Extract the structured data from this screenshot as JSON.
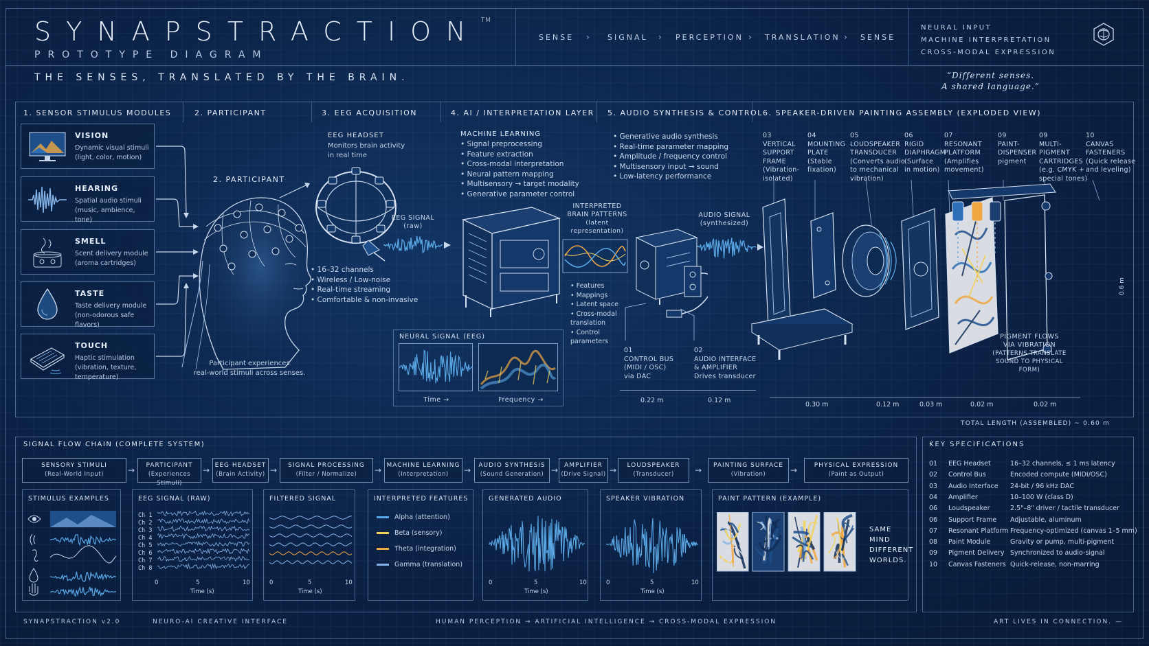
{
  "header": {
    "title": "SYNAPSTRACTION",
    "tm": "TM",
    "subtitle": "PROTOTYPE DIAGRAM",
    "tagline": "THE SENSES, TRANSLATED BY THE BRAIN.",
    "pipeline": [
      "SENSE",
      "SIGNAL",
      "PERCEPTION",
      "TRANSLATION",
      "SENSE"
    ],
    "pipeline_arrow": "›",
    "neural_lines": [
      "NEURAL INPUT",
      "MACHINE INTERPRETATION",
      "CROSS-MODAL EXPRESSION"
    ],
    "quote_line1": "“Different senses.",
    "quote_line2": "A shared language.”"
  },
  "sections": {
    "s1": "1. SENSOR STIMULUS MODULES",
    "s2": "2. PARTICIPANT",
    "s3": "3. EEG ACQUISITION",
    "s4": "4. AI / INTERPRETATION LAYER",
    "s5": "5. AUDIO SYNTHESIS & CONTROL",
    "s6": "6. SPEAKER-DRIVEN PAINTING ASSEMBLY (EXPLODED VIEW)"
  },
  "stimuli": [
    {
      "name": "VISION",
      "desc1": "Dynamic visual stimuli",
      "desc2": "(light, color, motion)"
    },
    {
      "name": "HEARING",
      "desc1": "Spatial audio stimuli",
      "desc2": "(music, ambience, tone)"
    },
    {
      "name": "SMELL",
      "desc1": "Scent delivery module",
      "desc2": "(aroma cartridges)"
    },
    {
      "name": "TASTE",
      "desc1": "Taste delivery module",
      "desc2": "(non-odorous safe flavors)"
    },
    {
      "name": "TOUCH",
      "desc1": "Haptic stimulation",
      "desc2": "(vibration, texture, temperature)"
    }
  ],
  "participant": {
    "label": "2. PARTICIPANT",
    "caption1": "Participant experiences",
    "caption2": "real-world stimuli across senses."
  },
  "eeg": {
    "headset_title": "EEG HEADSET",
    "headset_desc1": "Monitors brain activity",
    "headset_desc2": "in real time",
    "signal_label": "EEG SIGNAL",
    "signal_sub": "(raw)",
    "bullets": [
      "16–32 channels",
      "Wireless / Low-noise",
      "Real-time streaming",
      "Comfortable & non-invasive"
    ]
  },
  "ai": {
    "heading": "MACHINE LEARNING",
    "bullets": [
      "Signal preprocessing",
      "Feature extraction",
      "Cross-modal interpretation",
      "Neural pattern mapping",
      "Multisensory → target modality",
      "Generative parameter control"
    ],
    "patterns_title1": "INTERPRETED",
    "patterns_title2": "BRAIN PATTERNS",
    "patterns_sub": "(latent representation)",
    "pattern_bullets": [
      "Features",
      "Mappings",
      "Latent space",
      "Cross-modal translation",
      "Control parameters"
    ],
    "neural_box_title": "NEURAL SIGNAL (EEG)",
    "time_label": "Time →",
    "freq_label": "Frequency →"
  },
  "audio": {
    "bullets": [
      "Generative audio synthesis",
      "Real-time parameter mapping",
      "Amplitude / frequency control",
      "Multisensory input → sound",
      "Low-latency performance"
    ],
    "signal_label": "AUDIO SIGNAL",
    "signal_sub": "(synthesized)",
    "part01": [
      "01",
      "CONTROL BUS",
      "(MIDI / OSC)",
      "via DAC"
    ],
    "part02": [
      "02",
      "AUDIO INTERFACE",
      "& AMPLIFIER",
      "Drives transducer"
    ],
    "dim1": "0.22 m",
    "dim2": "0.12 m"
  },
  "assembly": {
    "parts": [
      {
        "num": "03",
        "l1": "VERTICAL",
        "l2": "SUPPORT",
        "l3": "FRAME",
        "l4": "(Vibration-",
        "l5": "isolated)"
      },
      {
        "num": "04",
        "l1": "MOUNTING",
        "l2": "PLATE",
        "l3": "(Stable",
        "l4": "fixation)",
        "l5": ""
      },
      {
        "num": "05",
        "l1": "LOUDSPEAKER",
        "l2": "TRANSDUCER",
        "l3": "(Converts audio",
        "l4": "to mechanical",
        "l5": "vibration)"
      },
      {
        "num": "06",
        "l1": "RIGID",
        "l2": "DIAPHRAGM",
        "l3": "(Surface",
        "l4": "in motion)",
        "l5": ""
      },
      {
        "num": "07",
        "l1": "RESONANT",
        "l2": "PLATFORM",
        "l3": "(Amplifies",
        "l4": "movement)",
        "l5": ""
      },
      {
        "num": "09",
        "l1": "PAINT-",
        "l2": "DISPENSER",
        "l3": "pigment",
        "l4": "",
        "l5": ""
      },
      {
        "num": "09",
        "l1": "MULTI-",
        "l2": "PIGMENT",
        "l3": "CARTRIDGES",
        "l4": "(e.g. CMYK +",
        "l5": "special tones)"
      },
      {
        "num": "10",
        "l1": "CANVAS",
        "l2": "FASTENERS",
        "l3": "(Quick release",
        "l4": "and leveling)",
        "l5": ""
      }
    ],
    "pigment_flow1": "PIGMENT FLOWS",
    "pigment_flow2": "VIA VIBRATION",
    "pigment_flow3": "(PATTERNS TRANSLATE",
    "pigment_flow4": "SOUND TO PHYSICAL FORM)",
    "dims": [
      "0.30 m",
      "0.12 m",
      "0.03 m",
      "0.02 m",
      "0.02 m"
    ],
    "total_length": "TOTAL LENGTH (ASSEMBLED) ~ 0.60 m",
    "side_dim": "0.6 m"
  },
  "flow": {
    "title": "SIGNAL FLOW CHAIN (COMPLETE SYSTEM)",
    "boxes": [
      {
        "t": "SENSORY STIMULI",
        "s": "(Real-World Input)"
      },
      {
        "t": "PARTICIPANT",
        "s": "(Experiences Stimuli)"
      },
      {
        "t": "EEG HEADSET",
        "s": "(Brain Activity)"
      },
      {
        "t": "SIGNAL PROCESSING",
        "s": "(Filter / Normalize)"
      },
      {
        "t": "MACHINE LEARNING",
        "s": "(Interpretation)"
      },
      {
        "t": "AUDIO SYNTHESIS",
        "s": "(Sound Generation)"
      },
      {
        "t": "AMPLIFIER",
        "s": "(Drive Signal)"
      },
      {
        "t": "LOUDSPEAKER",
        "s": "(Transducer)"
      },
      {
        "t": "PAINTING SURFACE",
        "s": "(Vibration)"
      },
      {
        "t": "PHYSICAL EXPRESSION",
        "s": "(Paint as Output)"
      }
    ],
    "arrow": "→",
    "panels": {
      "stimulus": "STIMULUS EXAMPLES",
      "eeg_raw": "EEG SIGNAL (RAW)",
      "filtered": "FILTERED SIGNAL",
      "features": "INTERPRETED FEATURES",
      "generated": "GENERATED AUDIO",
      "speaker": "SPEAKER VIBRATION",
      "paint": "PAINT PATTERN (EXAMPLE)"
    },
    "channels": [
      "Ch 1",
      "Ch 2",
      "Ch 3",
      "Ch 4",
      "Ch 5",
      "Ch 6",
      "Ch 7",
      "Ch 8"
    ],
    "ticks": [
      "0",
      "5",
      "10"
    ],
    "time_label": "Time (s)",
    "features": [
      {
        "name": "Alpha (attention)",
        "color": "#5aa8e6"
      },
      {
        "name": "Beta (sensory)",
        "color": "#f2d15a"
      },
      {
        "name": "Theta (integration)",
        "color": "#f0a742"
      },
      {
        "name": "Gamma (translation)",
        "color": "#86b4e8"
      }
    ],
    "same_mind": [
      "SAME",
      "MIND",
      "DIFFERENT",
      "WORLDS."
    ]
  },
  "specs": {
    "title": "KEY SPECIFICATIONS",
    "rows": [
      {
        "n": "01",
        "k": "EEG Headset",
        "v": "16–32 channels,   ≤ 1 ms latency"
      },
      {
        "n": "02",
        "k": "Control Bus",
        "v": "Encoded compute (MIDI/OSC)"
      },
      {
        "n": "03",
        "k": "Audio Interface",
        "v": "24-bit / 96 kHz DAC"
      },
      {
        "n": "04",
        "k": "Amplifier",
        "v": "10–100 W (class D)"
      },
      {
        "n": "06",
        "k": "Loudspeaker",
        "v": "2.5\"–8\" driver / tactile transducer"
      },
      {
        "n": "06",
        "k": "Support Frame",
        "v": "Adjustable, aluminum"
      },
      {
        "n": "07",
        "k": "Resonant Platform",
        "v": "Frequency-optimized (canvas 1–5 mm)"
      },
      {
        "n": "08",
        "k": "Paint Module",
        "v": "Gravity or pump, multi-pigment"
      },
      {
        "n": "09",
        "k": "Pigment Delivery",
        "v": "Synchronized to audio-signal"
      },
      {
        "n": "10",
        "k": "Canvas Fasteners",
        "v": "Quick-release, non-marring"
      }
    ]
  },
  "footer": {
    "left": "SYNAPSTRACTION   v2.0",
    "left2": "NEURO-AI CREATIVE INTERFACE",
    "center": "HUMAN PERCEPTION  →  ARTIFICIAL INTELLIGENCE  →  CROSS-MODAL EXPRESSION",
    "right": "ART LIVES IN CONNECTION. —"
  },
  "colors": {
    "bg": "#0b2246",
    "line": "#9fc0e6",
    "accent_blue": "#5aa8e6",
    "accent_gold": "#f0a742"
  }
}
